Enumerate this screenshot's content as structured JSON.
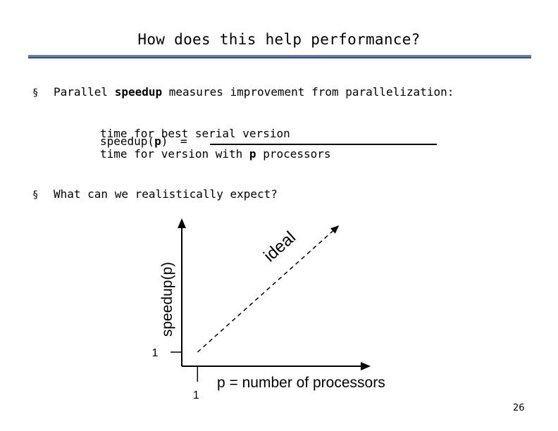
{
  "slide": {
    "title": "How does this help performance?",
    "page_number": "26"
  },
  "bullets": [
    {
      "marker": "§",
      "parts": [
        "Parallel ",
        "speedup",
        " measures improvement from parallelization:"
      ]
    },
    {
      "marker": "§",
      "text": "What can we realistically expect?"
    }
  ],
  "formula": {
    "numerator": "time for best serial version",
    "lhs_prefix": "speedup(",
    "lhs_var": "p",
    "lhs_suffix": ")",
    "equals": "=",
    "denominator_prefix": "time for version with ",
    "denominator_var": "p",
    "denominator_suffix": " processors"
  },
  "chart_data": {
    "type": "line",
    "xlabel": "p = number of processors",
    "ylabel": "speedup(p)",
    "x_tick_labels": [
      "1"
    ],
    "y_tick_labels": [
      "1"
    ],
    "series": [
      {
        "name": "ideal",
        "style": "dashed",
        "x": [
          1,
          10
        ],
        "y": [
          1,
          10
        ]
      }
    ],
    "xlim": [
      0,
      12
    ],
    "ylim": [
      0,
      10.5
    ],
    "grid": false
  }
}
